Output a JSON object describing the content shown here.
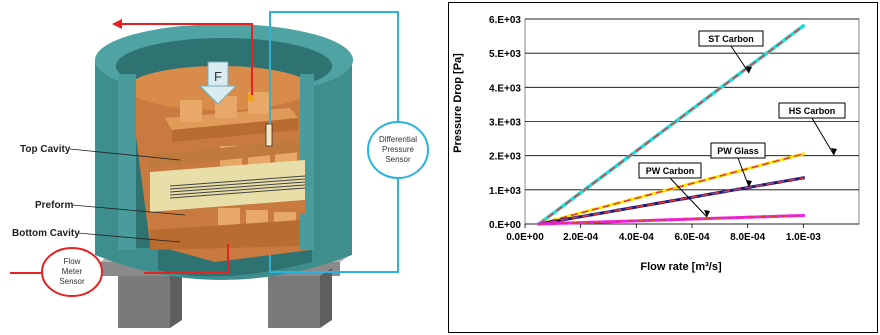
{
  "diagram": {
    "force_label": "F",
    "labels": {
      "top_cavity": "Top Cavity",
      "preform": "Preform",
      "bottom_cavity": "Bottom Cavity"
    },
    "sensors": {
      "flow_meter": [
        "Flow",
        "Meter",
        "Sensor"
      ],
      "differential": [
        "Differential",
        "Pressure",
        "Sensor"
      ]
    },
    "colors": {
      "shell": "#3E8E8E",
      "resin_orange": "#D98B4A",
      "preform_tan": "#E8DFA8",
      "flow_line": "#E52222",
      "sensor_line": "#2BB3E0",
      "support_gray": "#8A8A8A"
    }
  },
  "chart_data": {
    "type": "scatter",
    "xlabel": "Flow rate [m³/s]",
    "ylabel": "Pressure Drop [Pa]",
    "xlim": [
      0,
      0.0012
    ],
    "ylim": [
      0,
      6000
    ],
    "x_ticks": [
      "0.0E+00",
      "2.0E-04",
      "4.0E-04",
      "6.0E-04",
      "8.0E-04",
      "1.0E-03"
    ],
    "y_ticks": [
      "0.E+00",
      "1.E+03",
      "2.E+03",
      "3.E+03",
      "4.E+03",
      "5.E+03",
      "6.E+03"
    ],
    "grid": "horizontal",
    "series": [
      {
        "name": "ST Carbon",
        "color": "#22DDDD",
        "fit_color": "#E03A3A",
        "x": [
          5e-05,
          0.001
        ],
        "y": [
          0,
          5800
        ]
      },
      {
        "name": "HS Carbon",
        "color": "#FFE800",
        "fit_color": "#E03A3A",
        "x": [
          5e-05,
          0.001
        ],
        "y": [
          0,
          2050
        ]
      },
      {
        "name": "PW Glass",
        "color": "#1A1A80",
        "fit_color": "#E03A3A",
        "x": [
          5e-05,
          0.001
        ],
        "y": [
          0,
          1350
        ]
      },
      {
        "name": "PW Carbon",
        "color": "#EE22EE",
        "fit_color": "#E03A3A",
        "x": [
          5e-05,
          0.001
        ],
        "y": [
          0,
          250
        ]
      }
    ],
    "annotations": [
      "ST Carbon",
      "HS Carbon",
      "PW Glass",
      "PW Carbon"
    ]
  }
}
